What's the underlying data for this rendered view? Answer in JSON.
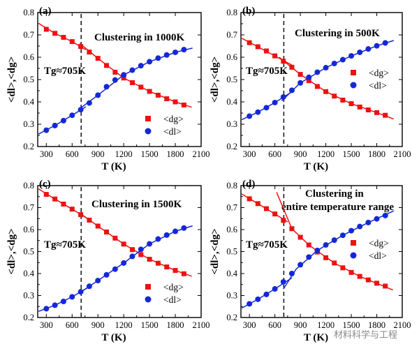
{
  "colors": {
    "dg": "#ee1111",
    "dl": "#1428d8",
    "axis": "#000000"
  },
  "watermark": "材料科学与工程",
  "chart_data": [
    {
      "type": "scatter",
      "panel": "(a)",
      "title": "Clustering in 1000K",
      "tg_label": "Tg≈705K",
      "tg_value": 705,
      "xlabel": "T (K)",
      "ylabel": "<dl>,<dg>",
      "xlim": [
        200,
        2100
      ],
      "ylim": [
        0.2,
        0.8
      ],
      "xticks": [
        300,
        600,
        900,
        1200,
        1500,
        1800,
        2100
      ],
      "yticks": [
        0.2,
        0.3,
        0.4,
        0.5,
        0.6,
        0.7,
        0.8
      ],
      "legend_position": "bottom-right",
      "legend_order": [
        "dg",
        "dl"
      ],
      "series": [
        {
          "key": "dg",
          "name": "<dg>",
          "marker": "square",
          "x": [
            300,
            400,
            500,
            600,
            700,
            800,
            900,
            1000,
            1100,
            1200,
            1300,
            1400,
            1500,
            1600,
            1700,
            1800,
            1900
          ],
          "y": [
            0.725,
            0.707,
            0.689,
            0.67,
            0.648,
            0.623,
            0.595,
            0.563,
            0.533,
            0.507,
            0.486,
            0.466,
            0.447,
            0.43,
            0.414,
            0.4,
            0.386
          ],
          "fit_low": [
            [
              210,
              0.752
            ],
            [
              400,
              0.707
            ],
            [
              600,
              0.67
            ],
            [
              760,
              0.633
            ]
          ],
          "fit_high": [
            [
              690,
              0.662
            ],
            [
              900,
              0.595
            ],
            [
              1200,
              0.507
            ],
            [
              1500,
              0.447
            ],
            [
              1800,
              0.4
            ],
            [
              1990,
              0.376
            ]
          ]
        },
        {
          "key": "dl",
          "name": "<dl>",
          "marker": "circle",
          "x": [
            300,
            400,
            500,
            600,
            700,
            800,
            900,
            1000,
            1100,
            1200,
            1300,
            1400,
            1500,
            1600,
            1700,
            1800,
            1900
          ],
          "y": [
            0.273,
            0.294,
            0.316,
            0.34,
            0.365,
            0.395,
            0.43,
            0.468,
            0.498,
            0.521,
            0.542,
            0.562,
            0.58,
            0.596,
            0.61,
            0.622,
            0.634
          ],
          "fit_low": [
            [
              210,
              0.256
            ],
            [
              400,
              0.294
            ],
            [
              600,
              0.34
            ],
            [
              760,
              0.378
            ]
          ],
          "fit_high": [
            [
              690,
              0.37
            ],
            [
              900,
              0.43
            ],
            [
              1200,
              0.521
            ],
            [
              1500,
              0.58
            ],
            [
              1800,
              0.622
            ],
            [
              2000,
              0.641
            ]
          ]
        }
      ]
    },
    {
      "type": "scatter",
      "panel": "(b)",
      "title": "Clustering in 500K",
      "tg_label": "Tg≈705K",
      "tg_value": 705,
      "xlabel": "T (K)",
      "ylabel": "<dl>,<dg>",
      "xlim": [
        200,
        2100
      ],
      "ylim": [
        0.2,
        0.8
      ],
      "xticks": [
        300,
        600,
        900,
        1200,
        1500,
        1800,
        2100
      ],
      "yticks": [
        0.2,
        0.3,
        0.4,
        0.5,
        0.6,
        0.7,
        0.8
      ],
      "legend_position": "right",
      "legend_order": [
        "dg",
        "dl"
      ],
      "series": [
        {
          "key": "dg",
          "name": "<dg>",
          "marker": "square",
          "x": [
            300,
            400,
            500,
            600,
            700,
            800,
            900,
            1000,
            1100,
            1200,
            1300,
            1400,
            1500,
            1600,
            1700,
            1800,
            1900
          ],
          "y": [
            0.665,
            0.647,
            0.628,
            0.606,
            0.582,
            0.555,
            0.523,
            0.495,
            0.469,
            0.446,
            0.426,
            0.408,
            0.392,
            0.377,
            0.364,
            0.352,
            0.34
          ],
          "fit_low": [
            [
              210,
              0.685
            ],
            [
              400,
              0.647
            ],
            [
              600,
              0.606
            ],
            [
              800,
              0.565
            ]
          ],
          "fit_high": [
            [
              650,
              0.6
            ],
            [
              900,
              0.523
            ],
            [
              1200,
              0.446
            ],
            [
              1500,
              0.392
            ],
            [
              1800,
              0.352
            ],
            [
              2000,
              0.323
            ]
          ]
        },
        {
          "key": "dl",
          "name": "<dl>",
          "marker": "circle",
          "x": [
            300,
            400,
            500,
            600,
            700,
            800,
            900,
            1000,
            1100,
            1200,
            1300,
            1400,
            1500,
            1600,
            1700,
            1800,
            1900
          ],
          "y": [
            0.336,
            0.354,
            0.374,
            0.397,
            0.422,
            0.452,
            0.485,
            0.51,
            0.533,
            0.553,
            0.572,
            0.589,
            0.606,
            0.622,
            0.637,
            0.651,
            0.664
          ],
          "fit_low": [
            [
              210,
              0.32
            ],
            [
              400,
              0.354
            ],
            [
              600,
              0.397
            ],
            [
              800,
              0.445
            ]
          ],
          "fit_high": [
            [
              680,
              0.405
            ],
            [
              900,
              0.485
            ],
            [
              1200,
              0.553
            ],
            [
              1500,
              0.606
            ],
            [
              1800,
              0.651
            ],
            [
              2000,
              0.675
            ]
          ]
        }
      ]
    },
    {
      "type": "scatter",
      "panel": "(c)",
      "title": "Clustering in 1500K",
      "tg_label": "Tg≈705K",
      "tg_value": 705,
      "xlabel": "T (K)",
      "ylabel": "<dl>,<dg>",
      "xlim": [
        200,
        2100
      ],
      "ylim": [
        0.2,
        0.8
      ],
      "xticks": [
        300,
        600,
        900,
        1200,
        1500,
        1800,
        2100
      ],
      "yticks": [
        0.2,
        0.3,
        0.4,
        0.5,
        0.6,
        0.7,
        0.8
      ],
      "legend_position": "bottom-right",
      "legend_order": [
        "dg",
        "dl"
      ],
      "series": [
        {
          "key": "dg",
          "name": "<dg>",
          "marker": "square",
          "x": [
            300,
            400,
            500,
            600,
            700,
            800,
            900,
            1000,
            1100,
            1200,
            1300,
            1400,
            1500,
            1600,
            1700,
            1800,
            1900
          ],
          "y": [
            0.76,
            0.739,
            0.716,
            0.693,
            0.668,
            0.643,
            0.616,
            0.589,
            0.561,
            0.534,
            0.509,
            0.486,
            0.465,
            0.447,
            0.43,
            0.414,
            0.399
          ],
          "fit_low": [
            [
              210,
              0.785
            ],
            [
              400,
              0.739
            ],
            [
              600,
              0.693
            ],
            [
              800,
              0.645
            ]
          ],
          "fit_high": [
            [
              690,
              0.675
            ],
            [
              900,
              0.616
            ],
            [
              1200,
              0.534
            ],
            [
              1500,
              0.465
            ],
            [
              1800,
              0.414
            ],
            [
              1990,
              0.388
            ]
          ]
        },
        {
          "key": "dl",
          "name": "<dl>",
          "marker": "circle",
          "x": [
            300,
            400,
            500,
            600,
            700,
            800,
            900,
            1000,
            1100,
            1200,
            1300,
            1400,
            1500,
            1600,
            1700,
            1800,
            1900
          ],
          "y": [
            0.24,
            0.256,
            0.273,
            0.294,
            0.317,
            0.342,
            0.368,
            0.394,
            0.42,
            0.448,
            0.478,
            0.51,
            0.535,
            0.557,
            0.575,
            0.592,
            0.607
          ],
          "fit_low": [
            [
              210,
              0.228
            ],
            [
              400,
              0.256
            ],
            [
              600,
              0.294
            ],
            [
              800,
              0.34
            ]
          ],
          "fit_high": [
            [
              680,
              0.31
            ],
            [
              900,
              0.368
            ],
            [
              1200,
              0.448
            ],
            [
              1500,
              0.535
            ],
            [
              1800,
              0.592
            ],
            [
              2000,
              0.617
            ]
          ]
        }
      ]
    },
    {
      "type": "scatter",
      "panel": "(d)",
      "title": "Clustering in entire temperature range",
      "title_lines": [
        "Clustering in",
        "entire temperature range"
      ],
      "tg_label": "Tg≈705K",
      "tg_value": 705,
      "xlabel": "T (K)",
      "ylabel": "<dl>,<dg>",
      "xlim": [
        200,
        2100
      ],
      "ylim": [
        0.2,
        0.8
      ],
      "xticks": [
        300,
        600,
        900,
        1200,
        1500,
        1800,
        2100
      ],
      "yticks": [
        0.2,
        0.3,
        0.4,
        0.5,
        0.6,
        0.7,
        0.8
      ],
      "legend_position": "right",
      "legend_order": [
        "dg",
        "dl"
      ],
      "series": [
        {
          "key": "dg",
          "name": "<dg>",
          "marker": "square",
          "x": [
            300,
            400,
            500,
            600,
            700,
            800,
            900,
            1000,
            1100,
            1200,
            1300,
            1400,
            1500,
            1600,
            1700,
            1800,
            1900
          ],
          "y": [
            0.74,
            0.718,
            0.695,
            0.671,
            0.642,
            0.604,
            0.565,
            0.53,
            0.498,
            0.472,
            0.448,
            0.426,
            0.405,
            0.387,
            0.371,
            0.356,
            0.343
          ],
          "fit_low": [
            [
              210,
              0.762
            ],
            [
              400,
              0.718
            ],
            [
              600,
              0.671
            ],
            [
              750,
              0.635
            ]
          ],
          "fit_high": [
            [
              620,
              0.77
            ],
            [
              800,
              0.604
            ],
            [
              1000,
              0.53
            ],
            [
              1300,
              0.448
            ],
            [
              1600,
              0.387
            ],
            [
              1990,
              0.325
            ]
          ]
        },
        {
          "key": "dl",
          "name": "<dl>",
          "marker": "circle",
          "x": [
            300,
            400,
            500,
            600,
            700,
            800,
            900,
            1000,
            1100,
            1200,
            1300,
            1400,
            1500,
            1600,
            1700,
            1800,
            1900
          ],
          "y": [
            0.262,
            0.283,
            0.305,
            0.33,
            0.362,
            0.4,
            0.44,
            0.475,
            0.505,
            0.53,
            0.552,
            0.574,
            0.595,
            0.614,
            0.632,
            0.649,
            0.664
          ],
          "fit_low": [
            [
              210,
              0.243
            ],
            [
              400,
              0.283
            ],
            [
              600,
              0.33
            ],
            [
              800,
              0.38
            ]
          ],
          "fit_high": [
            [
              700,
              0.33
            ],
            [
              850,
              0.42
            ],
            [
              1100,
              0.505
            ],
            [
              1400,
              0.574
            ],
            [
              1700,
              0.632
            ],
            [
              2000,
              0.685
            ]
          ]
        }
      ]
    }
  ]
}
